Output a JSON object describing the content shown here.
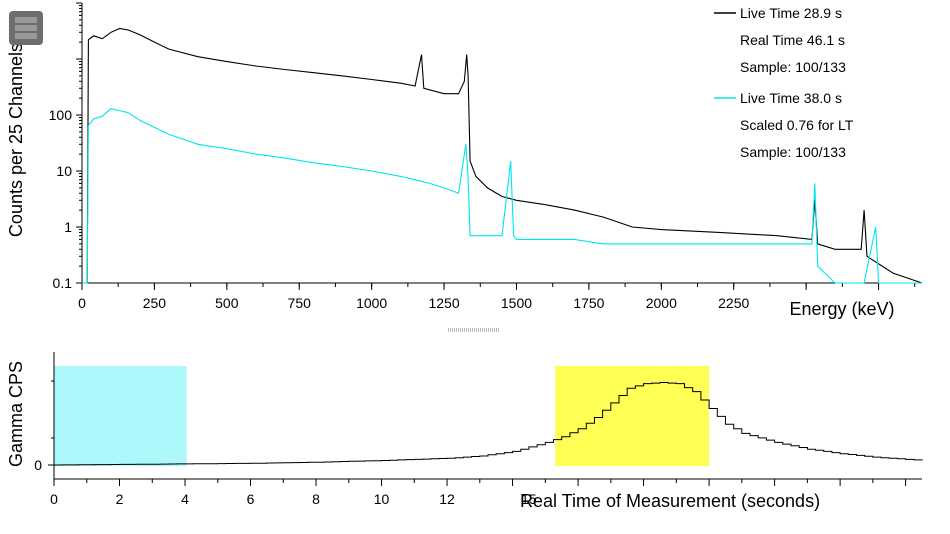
{
  "chart_data": [
    {
      "type": "line",
      "ylabel": "Counts per 25 Channels",
      "xlabel": "Energy (keV)",
      "yscale": "log",
      "ylim": [
        0.1,
        10000
      ],
      "xlim": [
        0,
        2900
      ],
      "x_ticks": [
        "0",
        "250",
        "500",
        "750",
        "1000",
        "1250",
        "1500",
        "1750",
        "2000",
        "2250"
      ],
      "y_ticks": [
        "0.1",
        "1",
        "10",
        "100"
      ],
      "legend_position": "top-right",
      "legend": [
        {
          "color": "#000000",
          "lines": [
            "Live Time 28.9 s",
            "Real Time 46.1 s",
            "Sample: 100/133"
          ]
        },
        {
          "color": "#00e5ee",
          "lines": [
            "Live Time 38.0 s",
            "Scaled 0.76 for LT",
            "Sample: 100/133"
          ]
        }
      ],
      "series": [
        {
          "color": "#000000",
          "points": [
            [
              0,
              0.1
            ],
            [
              18,
              0.1
            ],
            [
              22,
              2200
            ],
            [
              40,
              2600
            ],
            [
              70,
              2300
            ],
            [
              100,
              3000
            ],
            [
              130,
              3500
            ],
            [
              160,
              3300
            ],
            [
              200,
              2700
            ],
            [
              250,
              2000
            ],
            [
              300,
              1500
            ],
            [
              400,
              1100
            ],
            [
              500,
              900
            ],
            [
              600,
              750
            ],
            [
              700,
              650
            ],
            [
              800,
              570
            ],
            [
              900,
              500
            ],
            [
              1000,
              430
            ],
            [
              1100,
              370
            ],
            [
              1150,
              330
            ],
            [
              1172,
              1200
            ],
            [
              1180,
              300
            ],
            [
              1250,
              240
            ],
            [
              1300,
              240
            ],
            [
              1320,
              400
            ],
            [
              1328,
              1200
            ],
            [
              1333,
              500
            ],
            [
              1340,
              15
            ],
            [
              1360,
              8
            ],
            [
              1400,
              5
            ],
            [
              1450,
              3.5
            ],
            [
              1500,
              3
            ],
            [
              1600,
              2.5
            ],
            [
              1700,
              2
            ],
            [
              1800,
              1.5
            ],
            [
              1900,
              1
            ],
            [
              2000,
              0.9
            ],
            [
              2200,
              0.8
            ],
            [
              2400,
              0.7
            ],
            [
              2520,
              0.6
            ],
            [
              2530,
              3
            ],
            [
              2540,
              0.5
            ],
            [
              2600,
              0.4
            ],
            [
              2690,
              0.4
            ],
            [
              2700,
              2
            ],
            [
              2710,
              0.3
            ],
            [
              2800,
              0.15
            ],
            [
              2900,
              0.1
            ]
          ]
        },
        {
          "color": "#00e5ee",
          "points": [
            [
              0,
              0.1
            ],
            [
              18,
              0.1
            ],
            [
              22,
              65
            ],
            [
              40,
              85
            ],
            [
              70,
              95
            ],
            [
              100,
              130
            ],
            [
              130,
              120
            ],
            [
              160,
              110
            ],
            [
              200,
              80
            ],
            [
              250,
              60
            ],
            [
              300,
              45
            ],
            [
              400,
              30
            ],
            [
              500,
              25
            ],
            [
              600,
              20
            ],
            [
              700,
              17
            ],
            [
              800,
              14
            ],
            [
              900,
              12
            ],
            [
              1000,
              10
            ],
            [
              1100,
              8
            ],
            [
              1150,
              7
            ],
            [
              1200,
              6
            ],
            [
              1250,
              5
            ],
            [
              1300,
              4
            ],
            [
              1325,
              30
            ],
            [
              1332,
              10
            ],
            [
              1340,
              0.7
            ],
            [
              1400,
              0.7
            ],
            [
              1450,
              0.7
            ],
            [
              1480,
              15
            ],
            [
              1490,
              0.7
            ],
            [
              1500,
              0.6
            ],
            [
              1600,
              0.6
            ],
            [
              1700,
              0.6
            ],
            [
              1800,
              0.5
            ],
            [
              1900,
              0.5
            ],
            [
              2000,
              0.5
            ],
            [
              2200,
              0.5
            ],
            [
              2400,
              0.5
            ],
            [
              2520,
              0.5
            ],
            [
              2530,
              6
            ],
            [
              2540,
              0.2
            ],
            [
              2600,
              0.1
            ],
            [
              2700,
              0.1
            ],
            [
              2740,
              1
            ],
            [
              2750,
              0.1
            ],
            [
              2900,
              0.1
            ]
          ]
        }
      ]
    },
    {
      "type": "line",
      "ylabel": "Gamma CPS",
      "xlabel": "Real Time of Measurement (seconds)",
      "xlim": [
        0,
        26.5
      ],
      "ylim": [
        0,
        100
      ],
      "x_ticks": [
        "0",
        "2",
        "4",
        "6",
        "8",
        "10",
        "12",
        "15"
      ],
      "y_ticks": [
        "0"
      ],
      "highlights": [
        {
          "x0": 0,
          "x1": 4.05,
          "color": "#adf8fb"
        },
        {
          "x0": 15.3,
          "x1": 20.0,
          "color": "#ffff55"
        }
      ],
      "series": [
        {
          "color": "#000000",
          "points": [
            [
              0,
              0
            ],
            [
              2,
              0.5
            ],
            [
              4,
              1
            ],
            [
              6,
              1.5
            ],
            [
              8,
              2.5
            ],
            [
              10,
              4
            ],
            [
              12,
              6
            ],
            [
              13,
              8
            ],
            [
              14,
              12
            ],
            [
              15,
              20
            ],
            [
              15.5,
              25
            ],
            [
              16,
              32
            ],
            [
              16.5,
              42
            ],
            [
              17,
              55
            ],
            [
              17.5,
              68
            ],
            [
              18,
              72
            ],
            [
              18.5,
              73
            ],
            [
              19,
              72
            ],
            [
              19.5,
              65
            ],
            [
              20,
              50
            ],
            [
              20.5,
              36
            ],
            [
              21,
              28
            ],
            [
              22,
              20
            ],
            [
              23,
              14
            ],
            [
              24,
              10
            ],
            [
              25,
              7
            ],
            [
              26,
              5
            ],
            [
              26.5,
              4
            ]
          ]
        }
      ]
    }
  ]
}
